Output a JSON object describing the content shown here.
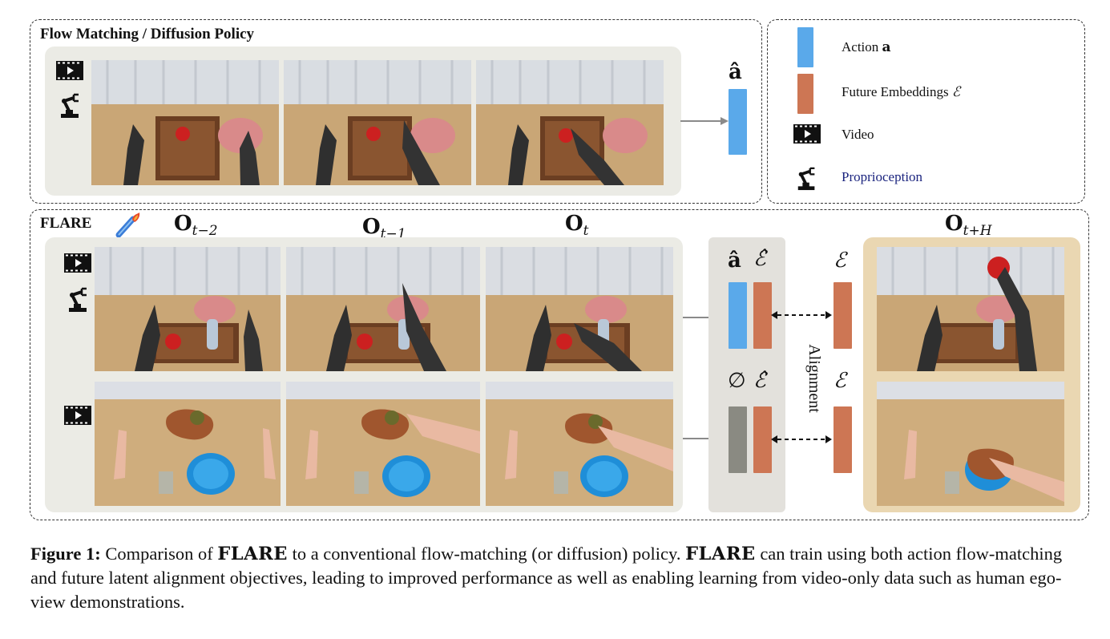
{
  "top_panel": {
    "title": "Flow Matching / Diffusion Policy",
    "output_label": "â"
  },
  "legend": {
    "items": [
      {
        "label": "Action",
        "symbol": "a",
        "swatch": "#5aa9ea"
      },
      {
        "label": "Future Embeddings",
        "symbol": "ℰ",
        "swatch": "#cd7654"
      },
      {
        "label": "Video",
        "symbol": "",
        "icon": "video-icon"
      },
      {
        "label": "Proprioception",
        "symbol": "",
        "icon": "robot-arm-icon"
      }
    ]
  },
  "flare_panel": {
    "title": "FLARE",
    "obs_labels": [
      {
        "base": "O",
        "sub": "t−2"
      },
      {
        "base": "O",
        "sub": "t−1"
      },
      {
        "base": "O",
        "sub": "t"
      },
      {
        "base": "O",
        "sub": "t+H"
      }
    ],
    "row1_labels": {
      "action": "â",
      "future_hat": "ℰ̂",
      "future": "ℰ"
    },
    "row2_labels": {
      "action": "∅",
      "future_hat": "ℰ̂",
      "future": "ℰ"
    },
    "alignment_label": "Alignment"
  },
  "caption": {
    "figure_label": "Figure 1:",
    "part1": " Comparison of ",
    "name1": "FLARE",
    "part2": " to a conventional flow-matching (or diffusion) policy. ",
    "name2": "FLARE",
    "part3": " can train using both action flow-matching and future latent alignment objectives, leading to improved performance as well as enabling learning from video-only data such as human ego-view demonstrations."
  },
  "colors": {
    "action_blue": "#5aa9ea",
    "embedding_orange": "#cd7654",
    "null_gray": "#8a8a82",
    "future_tan": "#ead7b2"
  }
}
